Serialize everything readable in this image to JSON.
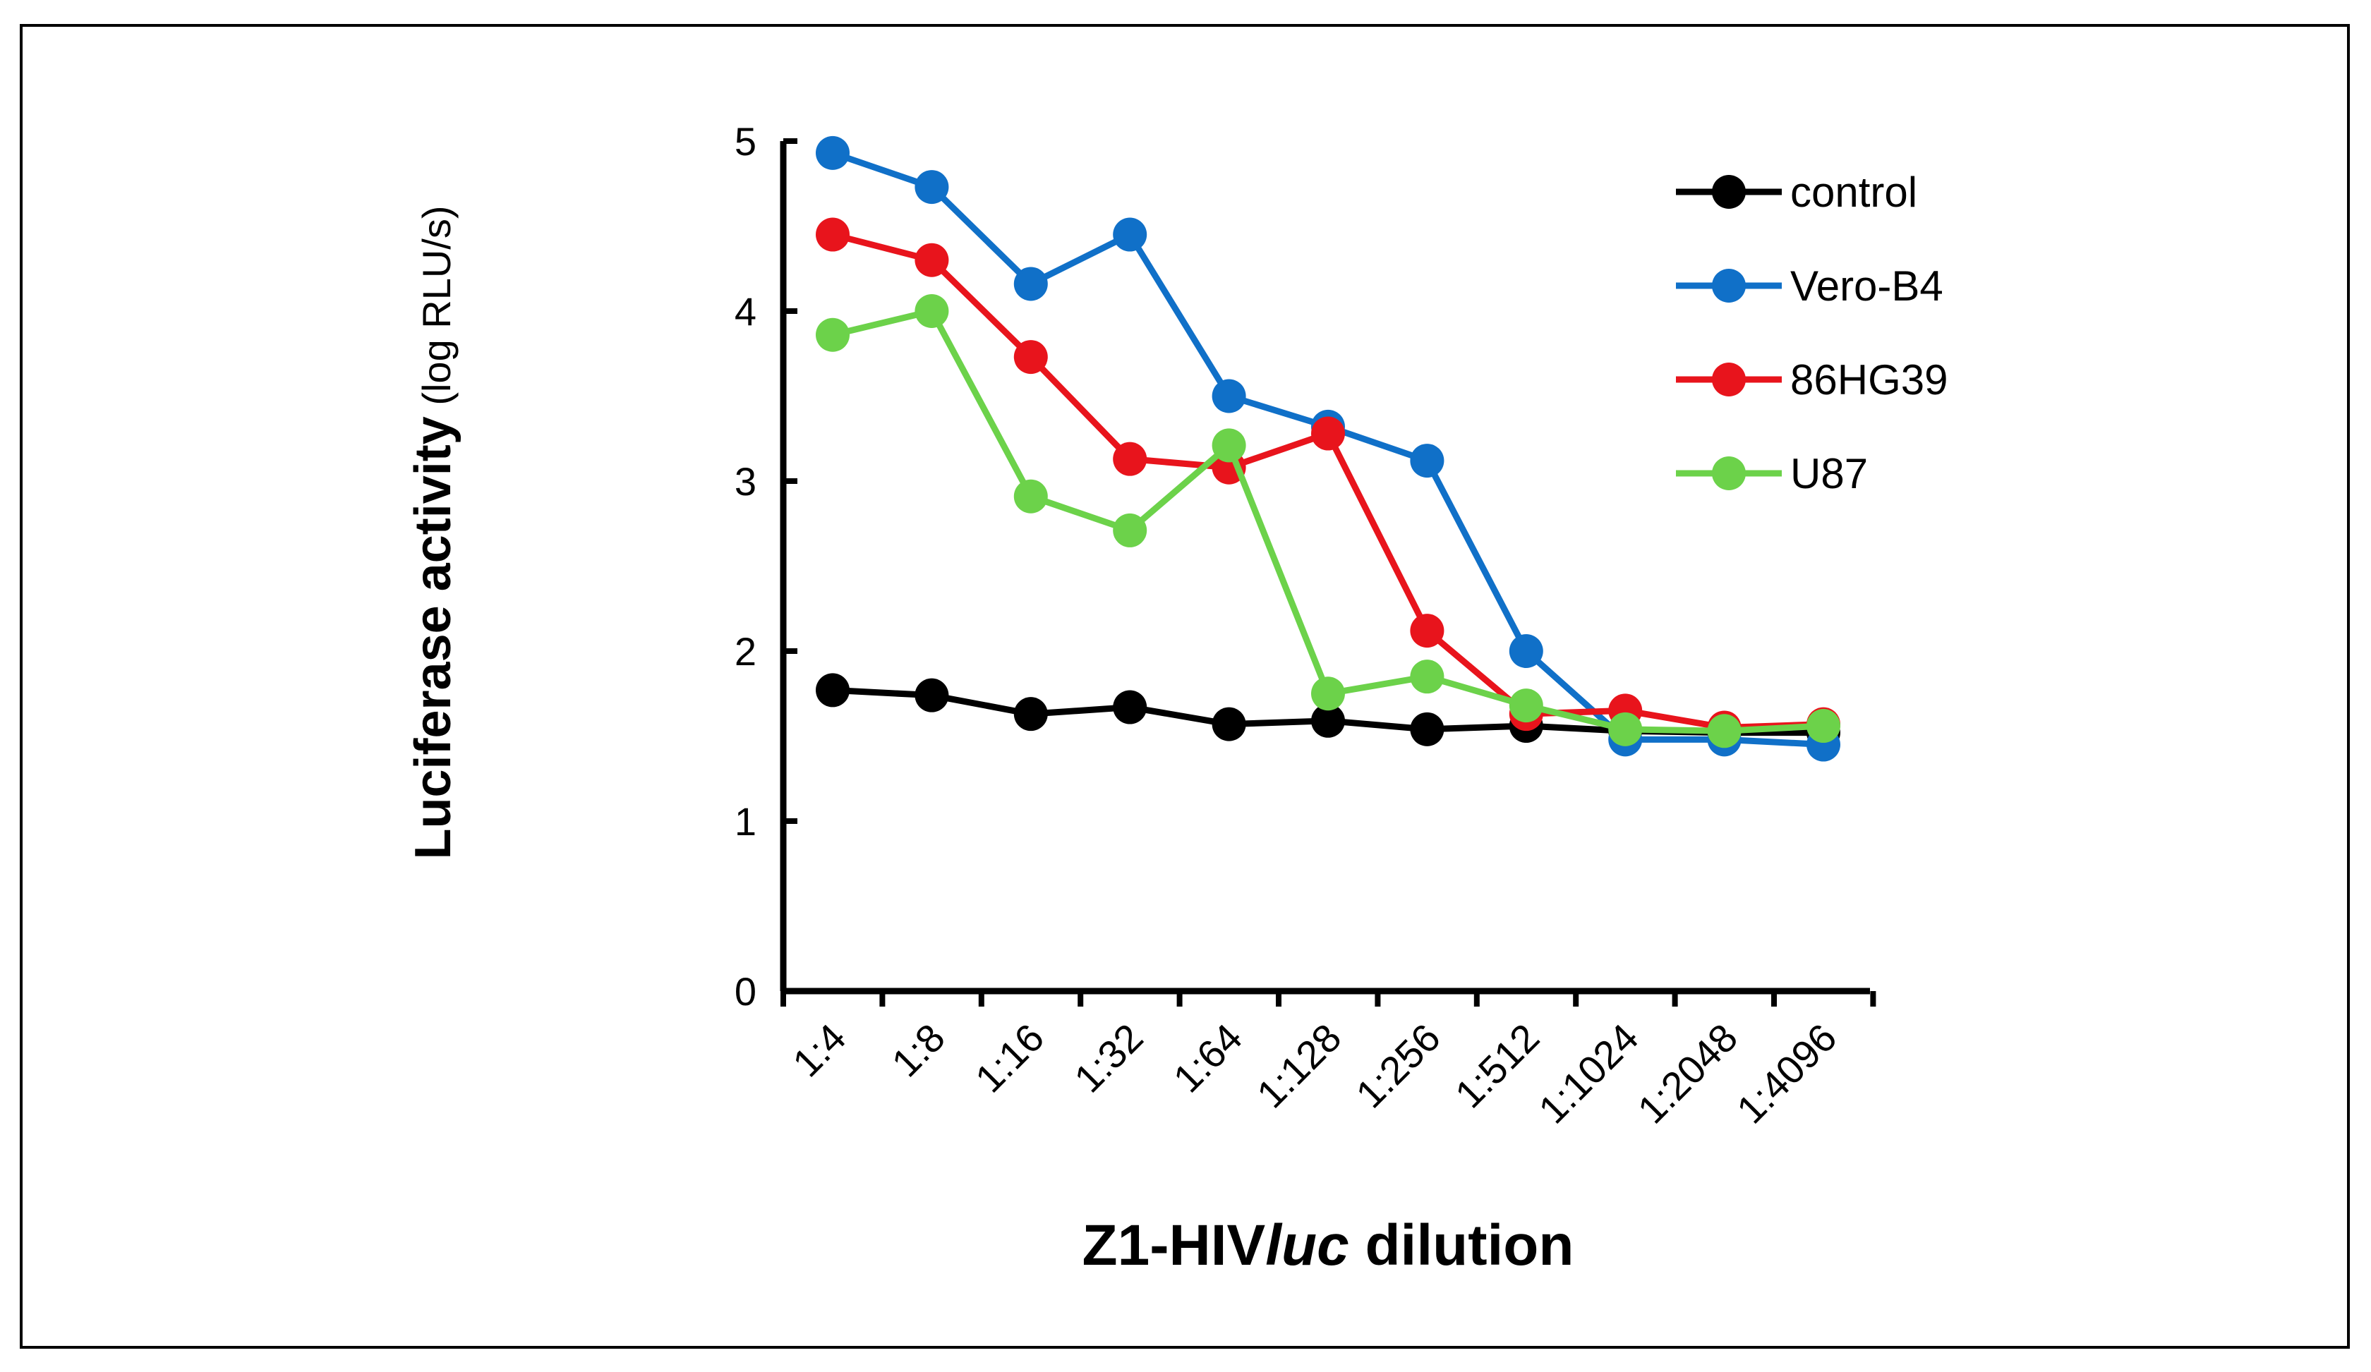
{
  "chart_data": {
    "type": "line",
    "title": "",
    "xlabel": {
      "prefix": "Z1-HIV",
      "italic": "luc",
      "suffix": " dilution"
    },
    "ylabel": {
      "bold": "Luciferase activity",
      "normal": " (log RLU/s)"
    },
    "ylim": [
      0,
      5
    ],
    "yticks": [
      "0",
      "1",
      "2",
      "3",
      "4",
      "5"
    ],
    "grid": false,
    "legend_position": "top-right",
    "categories": [
      "1:4",
      "1:8",
      "1:16",
      "1:32",
      "1:64",
      "1:128",
      "1:256",
      "1:512",
      "1:1024",
      "1:2048",
      "1:4096"
    ],
    "series": [
      {
        "name": "control",
        "color": "#000000",
        "values": [
          1.77,
          1.74,
          1.63,
          1.67,
          1.57,
          1.59,
          1.54,
          1.56,
          1.53,
          1.52,
          1.52
        ]
      },
      {
        "name": "Vero-B4",
        "color": "#1070c8",
        "values": [
          4.93,
          4.73,
          4.16,
          4.45,
          3.5,
          3.32,
          3.12,
          2.0,
          1.48,
          1.48,
          1.45
        ]
      },
      {
        "name": "86HG39",
        "color": "#e8141c",
        "values": [
          4.45,
          4.3,
          3.73,
          3.13,
          3.08,
          3.28,
          2.12,
          1.63,
          1.65,
          1.55,
          1.57
        ]
      },
      {
        "name": "U87",
        "color": "#6cd24a",
        "values": [
          3.86,
          4.0,
          2.91,
          2.71,
          3.21,
          1.75,
          1.85,
          1.68,
          1.54,
          1.53,
          1.56
        ]
      }
    ]
  }
}
